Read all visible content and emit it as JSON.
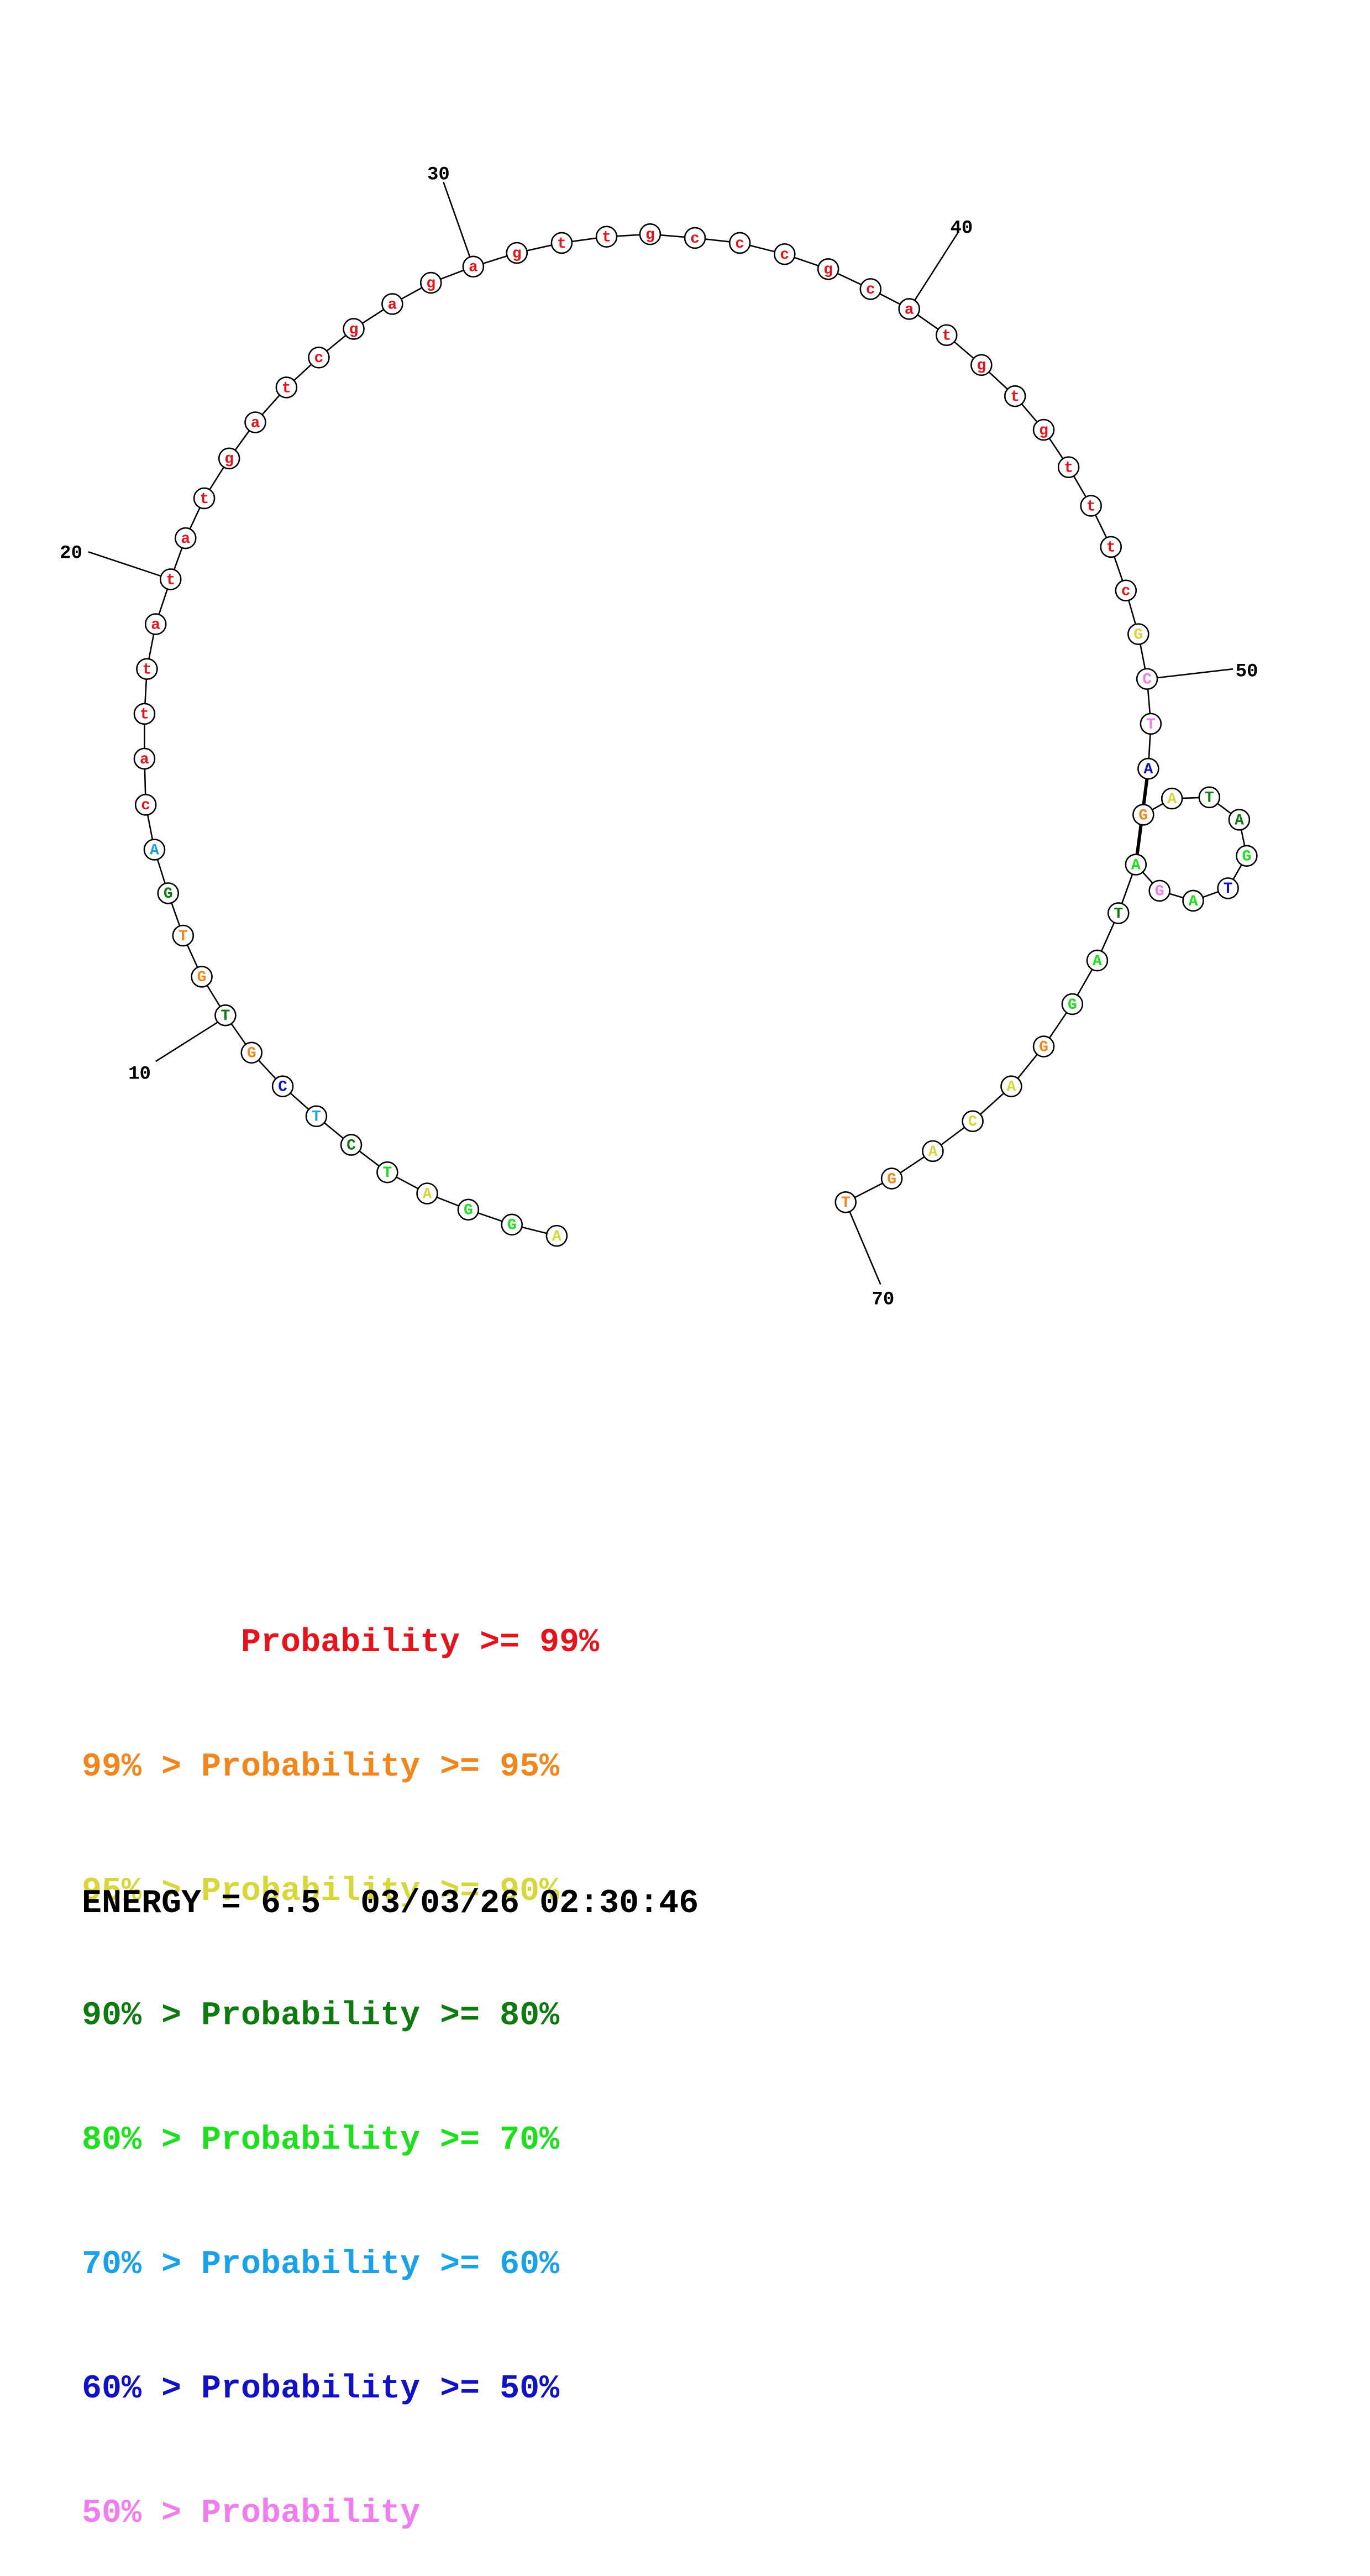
{
  "structure": {
    "bases": [
      "A",
      "G",
      "G",
      "A",
      "T",
      "C",
      "T",
      "C",
      "G",
      "T",
      "G",
      "T",
      "G",
      "A",
      "c",
      "a",
      "t",
      "t",
      "a",
      "t",
      "a",
      "t",
      "g",
      "a",
      "t",
      "c",
      "g",
      "a",
      "g",
      "a",
      "g",
      "t",
      "t",
      "g",
      "c",
      "c",
      "c",
      "g",
      "c",
      "a",
      "t",
      "g",
      "t",
      "g",
      "t",
      "t",
      "t",
      "c",
      "G",
      "C",
      "T",
      "A",
      "G",
      "A",
      "T",
      "A",
      "G",
      "T",
      "A",
      "G",
      "A",
      "T",
      "A",
      "G",
      "G",
      "A",
      "C",
      "A",
      "G",
      "T"
    ],
    "probability_class": [
      2,
      4,
      4,
      2,
      4,
      3,
      5,
      6,
      1,
      3,
      1,
      1,
      3,
      5,
      0,
      0,
      0,
      0,
      0,
      0,
      0,
      0,
      0,
      0,
      0,
      0,
      0,
      0,
      0,
      0,
      0,
      0,
      0,
      0,
      0,
      0,
      0,
      0,
      0,
      0,
      0,
      0,
      0,
      0,
      0,
      0,
      0,
      0,
      2,
      7,
      7,
      6,
      1,
      2,
      3,
      3,
      4,
      6,
      4,
      7,
      4,
      3,
      4,
      4,
      1,
      2,
      2,
      2,
      1,
      1
    ],
    "position_labels": [
      10,
      20,
      30,
      40,
      50,
      70
    ],
    "pairs": [
      [
        51,
        60
      ]
    ]
  },
  "legend": {
    "colors": [
      "#e8121b",
      "#f3861a",
      "#d7d73a",
      "#0f7a0f",
      "#1be01b",
      "#19a1e9",
      "#1111c8",
      "#f07cf0"
    ],
    "rows": [
      "        Probability >= 99%",
      "99% > Probability >= 95%",
      "95% > Probability >= 90%",
      "90% > Probability >= 80%",
      "80% > Probability >= 70%",
      "70% > Probability >= 60%",
      "60% > Probability >= 50%",
      "50% > Probability"
    ]
  },
  "footer": {
    "energy": "ENERGY = 6.5",
    "timestamp": "03/03/26 02:30:46"
  }
}
